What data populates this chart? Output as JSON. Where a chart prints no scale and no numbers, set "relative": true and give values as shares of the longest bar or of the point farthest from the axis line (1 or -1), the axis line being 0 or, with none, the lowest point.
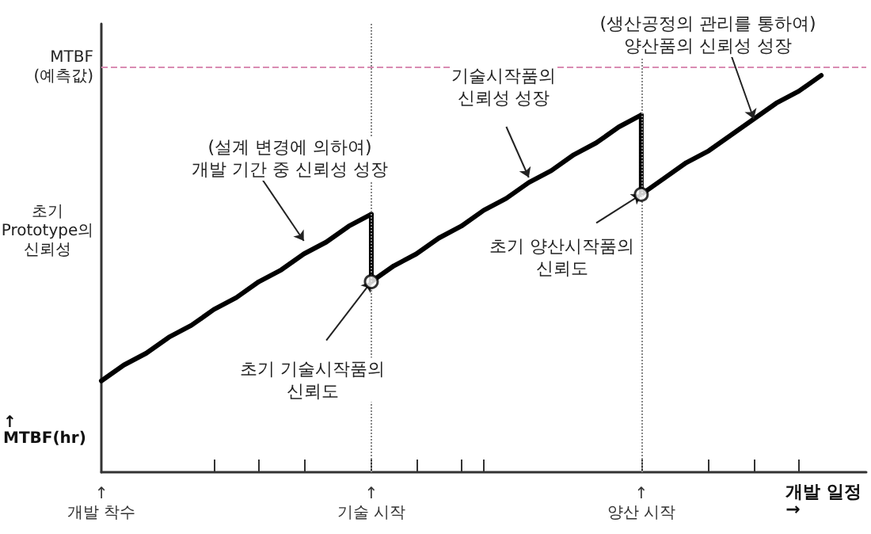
{
  "chart_data": {
    "type": "line",
    "relative": true,
    "xlabel": "개발 일정\n→",
    "ylabel": "↑\nMTBF(hr)",
    "marker": "none",
    "categories": [
      "↑\n개발 착수",
      null,
      null,
      null,
      null,
      null,
      null,
      null,
      null,
      null,
      null,
      null,
      "↑\n기술 시작",
      null,
      null,
      null,
      null,
      null,
      null,
      null,
      null,
      null,
      null,
      null,
      "↑\n양산 시작",
      null,
      null,
      null,
      null,
      null,
      null,
      null,
      null,
      null,
      null
    ],
    "series": [
      {
        "color": "#000000",
        "values": [
          0.23,
          0.27,
          0.3,
          0.34,
          0.37,
          0.41,
          0.44,
          0.48,
          0.51,
          0.55,
          0.58,
          0.62,
          0.65,
          null,
          null,
          null,
          null,
          null,
          null,
          null,
          null,
          null,
          null,
          null,
          null,
          null,
          null,
          null,
          null,
          null,
          null,
          null,
          null,
          null,
          null
        ]
      },
      {
        "color": "#000000",
        "values": [
          null,
          null,
          null,
          null,
          null,
          null,
          null,
          null,
          null,
          null,
          null,
          null,
          0.48,
          0.52,
          0.55,
          0.59,
          0.62,
          0.66,
          0.69,
          0.73,
          0.76,
          0.8,
          0.83,
          0.87,
          0.9,
          null,
          null,
          null,
          null,
          null,
          null,
          null,
          null,
          null,
          null
        ]
      },
      {
        "color": "#000000",
        "values": [
          null,
          null,
          null,
          null,
          null,
          null,
          null,
          null,
          null,
          null,
          null,
          null,
          null,
          null,
          null,
          null,
          null,
          null,
          null,
          null,
          null,
          null,
          null,
          null,
          0.7,
          0.74,
          0.78,
          0.81,
          0.85,
          0.89,
          0.93,
          0.96,
          1.0,
          null,
          null
        ]
      },
      {
        "color": "#000000",
        "x": [
          "↑\n기술 시작",
          "↑\n기술 시작"
        ],
        "values": [
          0.65,
          0.48
        ]
      },
      {
        "color": "#000000",
        "x": [
          "↑\n양산 시작",
          "↑\n양산 시작"
        ],
        "values": [
          0.9,
          0.7
        ]
      },
      {
        "type": "scatter",
        "color": "#000000",
        "marker": "circle",
        "values": [
          null,
          null,
          null,
          null,
          null,
          null,
          null,
          null,
          null,
          null,
          null,
          null,
          0.48,
          null,
          null,
          null,
          null,
          null,
          null,
          null,
          null,
          null,
          null,
          null,
          0.7,
          null,
          null,
          null,
          null,
          null,
          null,
          null,
          null,
          null,
          null
        ]
      }
    ],
    "ref_lines": [
      {
        "axis": "y",
        "value": 1.02,
        "label": "MTBF\n(예측값)",
        "color": "#d98cb3",
        "line_style": "dashed"
      },
      {
        "axis": "x",
        "value": "↑\n기술 시작",
        "label": null,
        "color": "#888888",
        "line_style": "dotted"
      },
      {
        "axis": "x",
        "value": "↑\n양산 시작",
        "label": null,
        "color": "#888888",
        "line_style": "dotted"
      }
    ],
    "annotations": [
      "초기\nPrototype의\n신뢰성",
      "(설계 변경에 의하여)\n개발 기간 중 신뢰성 성장",
      "기술시작품의\n신뢰성 성장",
      "(생산공정의 관리를 통하여)\n양산품의 신뢰성 성장",
      {
        "text": "초기 기술시작품의\n신뢰도",
        "x": "↑\n기술 시작",
        "y": 0.48
      },
      {
        "text": "초기 양산시작품의\n신뢰도",
        "x": "↑\n양산 시작",
        "y": 0.7
      }
    ]
  }
}
